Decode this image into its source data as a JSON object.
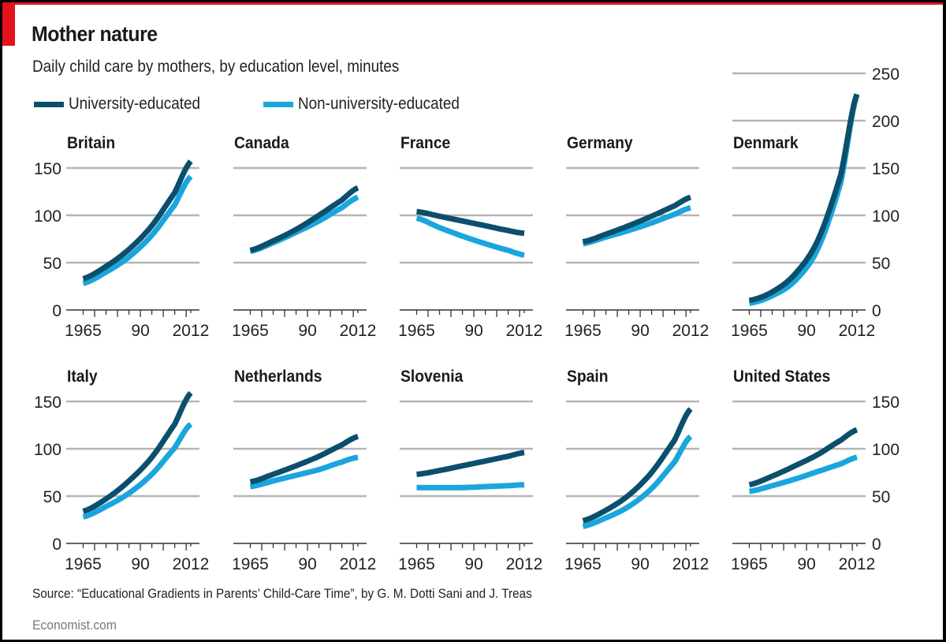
{
  "header": {
    "title": "Mother nature",
    "subtitle": "Daily child care by mothers, by education level, minutes"
  },
  "legend": [
    {
      "label": "University-educated",
      "color": "#0b4f6c"
    },
    {
      "label": "Non-university-educated",
      "color": "#1aa6dc"
    }
  ],
  "footer": {
    "source": "Source: “Educational Gradients in Parents’ Child-Care Time”, by G. M. Dotti Sani and J. Treas",
    "brand": "Economist.com"
  },
  "colors": {
    "accent": "#e3121b",
    "university": "#0b4f6c",
    "non_university": "#1aa6dc",
    "gridline": "#b5b5b5",
    "axis": "#333333"
  },
  "chart_data": {
    "type": "line",
    "title": "Mother nature",
    "subtitle": "Daily child care by mothers, by education level, minutes",
    "xlabel": "",
    "ylabel": "minutes",
    "x": [
      1965,
      1975,
      1985,
      1995,
      2005,
      2012
    ],
    "x_tick_labels": [
      "1965",
      "90",
      "2012"
    ],
    "x_tick_values": [
      1965,
      1990,
      2012
    ],
    "xlim": [
      1965,
      2012
    ],
    "series_names": [
      "University-educated",
      "Non-university-educated"
    ],
    "legend_position": "top-left",
    "grid": true,
    "panels": [
      {
        "name": "Britain",
        "row": 0,
        "ylim": [
          0,
          150
        ],
        "y_ticks": [
          0,
          50,
          100,
          150
        ],
        "y_labels_side": "left",
        "series": [
          {
            "name": "University-educated",
            "values": [
              33,
              46,
              64,
              89,
              124,
              157
            ]
          },
          {
            "name": "Non-university-educated",
            "values": [
              28,
              40,
              56,
              79,
              111,
              141
            ]
          }
        ]
      },
      {
        "name": "Canada",
        "row": 0,
        "ylim": [
          0,
          150
        ],
        "y_ticks": [
          0,
          50,
          100,
          150
        ],
        "y_labels_side": "none",
        "series": [
          {
            "name": "University-educated",
            "values": [
              63,
              73,
              85,
              100,
              116,
              129
            ]
          },
          {
            "name": "Non-university-educated",
            "values": [
              62,
              71,
              82,
              94,
              108,
              119
            ]
          }
        ]
      },
      {
        "name": "France",
        "row": 0,
        "ylim": [
          0,
          150
        ],
        "y_ticks": [
          0,
          50,
          100,
          150
        ],
        "y_labels_side": "none",
        "series": [
          {
            "name": "University-educated",
            "values": [
              104,
              99,
              94,
              89,
              84,
              81
            ]
          },
          {
            "name": "Non-university-educated",
            "values": [
              97,
              87,
              78,
              70,
              63,
              58
            ]
          }
        ]
      },
      {
        "name": "Germany",
        "row": 0,
        "ylim": [
          0,
          150
        ],
        "y_ticks": [
          0,
          50,
          100,
          150
        ],
        "y_labels_side": "none",
        "series": [
          {
            "name": "University-educated",
            "values": [
              72,
              80,
              89,
              99,
              110,
              119
            ]
          },
          {
            "name": "Non-university-educated",
            "values": [
              70,
              77,
              84,
              92,
              101,
              108
            ]
          }
        ]
      },
      {
        "name": "Denmark",
        "row": 0,
        "ylim": [
          0,
          250
        ],
        "y_ticks": [
          0,
          50,
          100,
          150,
          200,
          250
        ],
        "y_labels_side": "right",
        "series": [
          {
            "name": "University-educated",
            "values": [
              10,
              19,
              38,
              74,
              143,
              228
            ]
          },
          {
            "name": "Non-university-educated",
            "values": [
              7,
              15,
              31,
              65,
              135,
              227
            ]
          }
        ]
      },
      {
        "name": "Italy",
        "row": 1,
        "ylim": [
          0,
          150
        ],
        "y_ticks": [
          0,
          50,
          100,
          150
        ],
        "y_labels_side": "left",
        "series": [
          {
            "name": "University-educated",
            "values": [
              34,
              47,
              66,
              91,
              126,
              159
            ]
          },
          {
            "name": "Non-university-educated",
            "values": [
              28,
              39,
              53,
              73,
              101,
              126
            ]
          }
        ]
      },
      {
        "name": "Netherlands",
        "row": 1,
        "ylim": [
          0,
          150
        ],
        "y_ticks": [
          0,
          50,
          100,
          150
        ],
        "y_labels_side": "none",
        "series": [
          {
            "name": "University-educated",
            "values": [
              65,
              73,
              82,
              92,
              104,
              113
            ]
          },
          {
            "name": "Non-university-educated",
            "values": [
              60,
              66,
              72,
              78,
              86,
              91
            ]
          }
        ]
      },
      {
        "name": "Slovenia",
        "row": 1,
        "ylim": [
          0,
          150
        ],
        "y_ticks": [
          0,
          50,
          100,
          150
        ],
        "y_labels_side": "none",
        "series": [
          {
            "name": "University-educated",
            "values": [
              73,
              77,
              82,
              87,
              92,
              96
            ]
          },
          {
            "name": "Non-university-educated",
            "values": [
              59,
              59,
              59,
              60,
              61,
              62
            ]
          }
        ]
      },
      {
        "name": "Spain",
        "row": 1,
        "ylim": [
          0,
          150
        ],
        "y_ticks": [
          0,
          50,
          100,
          150
        ],
        "y_labels_side": "none",
        "series": [
          {
            "name": "University-educated",
            "values": [
              24,
              35,
              51,
              75,
              109,
              142
            ]
          },
          {
            "name": "Non-university-educated",
            "values": [
              18,
              27,
              39,
              58,
              86,
              113
            ]
          }
        ]
      },
      {
        "name": "United States",
        "row": 1,
        "ylim": [
          0,
          150
        ],
        "y_ticks": [
          0,
          50,
          100,
          150
        ],
        "y_labels_side": "right",
        "series": [
          {
            "name": "University-educated",
            "values": [
              62,
              71,
              82,
              94,
              109,
              120
            ]
          },
          {
            "name": "Non-university-educated",
            "values": [
              55,
              61,
              68,
              76,
              84,
              91
            ]
          }
        ]
      }
    ]
  }
}
